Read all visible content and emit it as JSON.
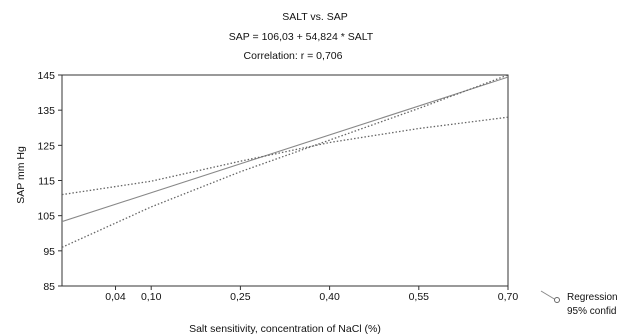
{
  "chart_data": {
    "type": "line",
    "title": "SALT vs. SAP",
    "subtitle": "SAP = 106,03 + 54,824 * SALT",
    "annotation": "Correlation: r = 0,706",
    "xlabel": "Salt sensitivity, concentration of NaCl (%)",
    "ylabel": "SAP mm Hg",
    "xlim": [
      -0.05,
      0.7
    ],
    "ylim": [
      85,
      145
    ],
    "x_ticks": [
      0.04,
      0.1,
      0.25,
      0.4,
      0.55,
      0.7
    ],
    "x_tick_labels": [
      "0,04",
      "0,10",
      "0,25",
      "0,40",
      "0,55",
      "0,70"
    ],
    "y_ticks": [
      85,
      95,
      105,
      115,
      125,
      135,
      145
    ],
    "y_tick_labels": [
      "85",
      "95",
      "105",
      "115",
      "125",
      "135",
      "145"
    ],
    "grid": false,
    "legend_position": "bottom-right, outside plot",
    "series": [
      {
        "name": "Regression",
        "style": "solid",
        "color": "#888888",
        "x": [
          -0.05,
          0.7
        ],
        "y": [
          103.3,
          144.4
        ]
      },
      {
        "name": "95% confid",
        "style": "dotted",
        "color": "#666666",
        "x": [
          -0.05,
          0.1,
          0.25,
          0.4,
          0.55,
          0.7
        ],
        "y": [
          111.0,
          114.8,
          120.5,
          125.8,
          129.8,
          133.0
        ]
      },
      {
        "style": "dotted",
        "color": "#666666",
        "x": [
          -0.05,
          0.1,
          0.25,
          0.4,
          0.55,
          0.7
        ],
        "y": [
          96.0,
          107.5,
          117.5,
          126.5,
          135.5,
          145.0
        ]
      }
    ]
  }
}
